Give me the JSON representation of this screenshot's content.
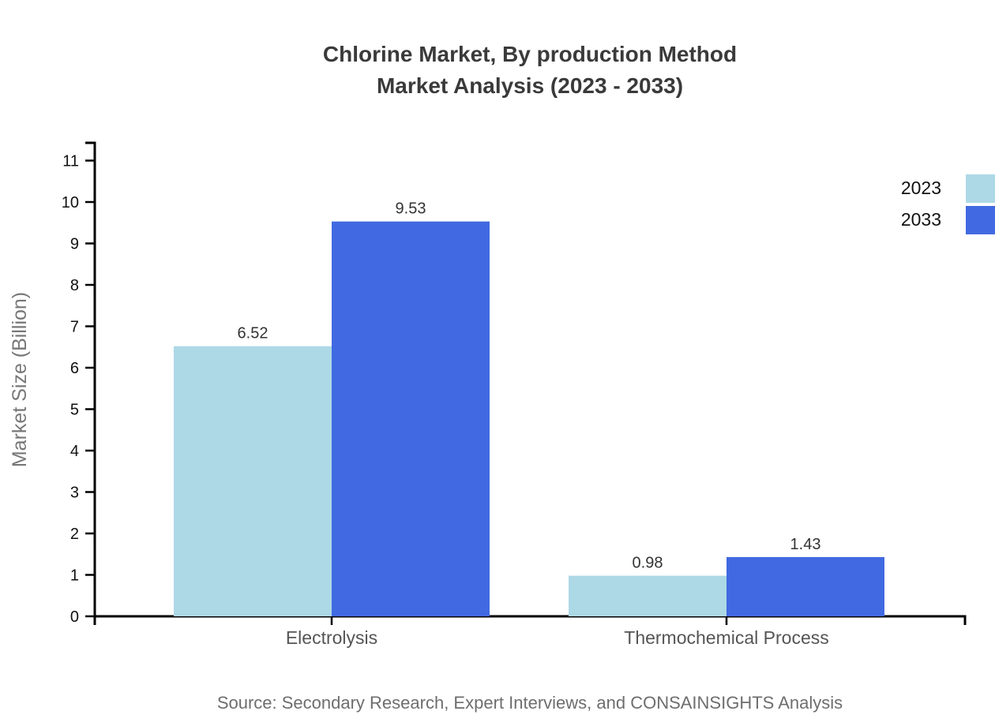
{
  "title": {
    "line1": "Chlorine Market, By production Method",
    "line2": "Market Analysis (2023 - 2033)"
  },
  "source": "Source: Secondary Research, Expert Interviews, and CONSAINSIGHTS Analysis",
  "chart_data": {
    "type": "bar",
    "title": "Chlorine Market, By production Method Market Analysis (2023 - 2033)",
    "categories": [
      "Electrolysis",
      "Thermochemical Process"
    ],
    "series": [
      {
        "name": "2023",
        "color": "#ADD8E6",
        "values": [
          6.52,
          0.98
        ]
      },
      {
        "name": "2033",
        "color": "#4169E1",
        "values": [
          9.53,
          1.43
        ]
      }
    ],
    "xlabel": "",
    "ylabel": "Market Size (Billion)",
    "ylim": [
      0,
      11
    ],
    "ytick_step": 1,
    "grid": false,
    "legend_position": "top-right",
    "value_labels": true
  },
  "colors": {
    "background": "#ffffff",
    "axis": "#000000",
    "tick_label": "#111111",
    "value_label": "#333333",
    "category_label": "#555555",
    "axis_title": "#777777",
    "title": "#3a3a3a",
    "source": "#6e6e6e"
  }
}
